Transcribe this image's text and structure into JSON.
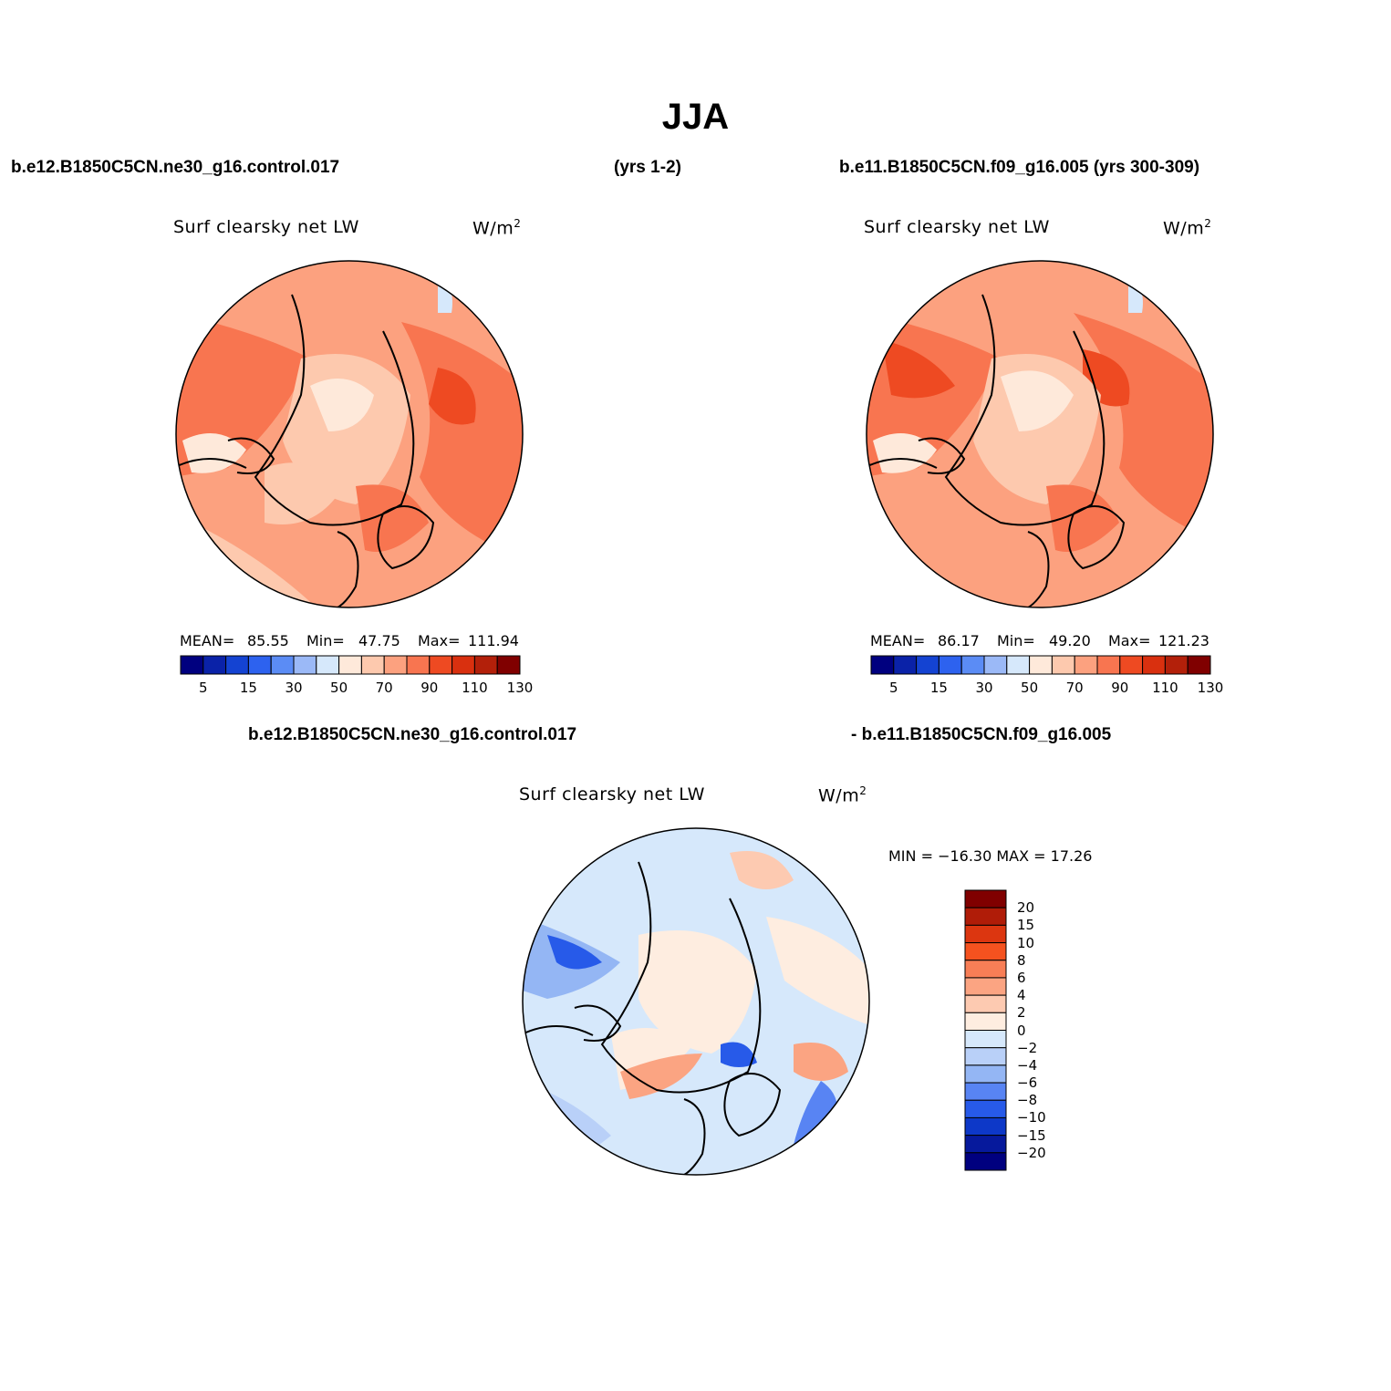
{
  "figure": {
    "title": "JJA",
    "top_left_case": "b.e12.B1850C5CN.ne30_g16.control.017",
    "top_mid_years": "(yrs 1-2)",
    "top_right_case": "b.e11.B1850C5CN.f09_g16.005 (yrs 300-309)",
    "diff_case_a": "b.e12.B1850C5CN.ne30_g16.control.017",
    "diff_case_b": "- b.e11.B1850C5CN.f09_g16.005"
  },
  "panels": {
    "left": {
      "variable": "Surf clearsky net LW",
      "units_base": "W/m",
      "units_exp": "2",
      "mean_label": "MEAN=",
      "mean": "85.55",
      "min_label": "Min=",
      "min": "47.75",
      "max_label": "Max=",
      "max": "111.94"
    },
    "right": {
      "variable": "Surf clearsky net LW",
      "units_base": "W/m",
      "units_exp": "2",
      "mean_label": "MEAN=",
      "mean": "86.17",
      "min_label": "Min=",
      "min": "49.20",
      "max_label": "Max=",
      "max": "121.23"
    },
    "diff": {
      "variable": "Surf clearsky net LW",
      "units_base": "W/m",
      "units_exp": "2",
      "minmax": "MIN = −16.30 MAX =   17.26"
    }
  },
  "colorbars": {
    "absolute": {
      "colors": [
        "#00007f",
        "#0a22a8",
        "#1443d2",
        "#2d62ef",
        "#5b8cf5",
        "#9bb9f7",
        "#d6e8fb",
        "#fee9da",
        "#fdc9ae",
        "#fca17f",
        "#f87550",
        "#ee4a22",
        "#d9300f",
        "#b3200a",
        "#800000"
      ],
      "tick_labels": [
        "5",
        "15",
        "30",
        "50",
        "70",
        "90",
        "110",
        "130"
      ]
    },
    "difference": {
      "colors": [
        "#800000",
        "#b01c08",
        "#dc3610",
        "#f5521f",
        "#f87e56",
        "#fba482",
        "#fdcab1",
        "#feede0",
        "#d6e8fb",
        "#b9d0f8",
        "#94b6f4",
        "#5884f3",
        "#275ae9",
        "#0d38c8",
        "#06199c",
        "#00007f"
      ],
      "tick_labels": [
        "20",
        "15",
        "10",
        "8",
        "6",
        "4",
        "2",
        "0",
        "−2",
        "−4",
        "−6",
        "−8",
        "−10",
        "−15",
        "−20"
      ]
    }
  }
}
